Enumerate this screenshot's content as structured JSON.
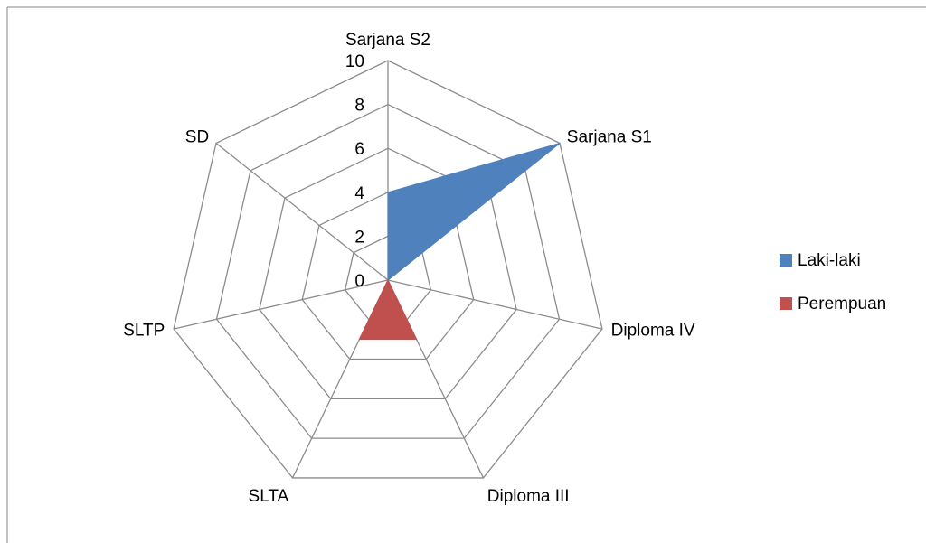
{
  "chart_data": {
    "type": "radar",
    "categories": [
      "Sarjana S2",
      "Sarjana S1",
      "Diploma IV",
      "Diploma III",
      "SLTA",
      "SLTP",
      "SD"
    ],
    "series": [
      {
        "name": "Laki-laki",
        "color": "#4f81bd",
        "values": [
          4,
          10,
          0,
          0,
          0,
          0,
          0
        ]
      },
      {
        "name": "Perempuan",
        "color": "#c0504d",
        "values": [
          0,
          0,
          0,
          3,
          3,
          0,
          0
        ]
      }
    ],
    "rlim": [
      0,
      10
    ],
    "rticks": [
      0,
      2,
      4,
      6,
      8,
      10
    ],
    "grid": true,
    "legend": "right"
  }
}
